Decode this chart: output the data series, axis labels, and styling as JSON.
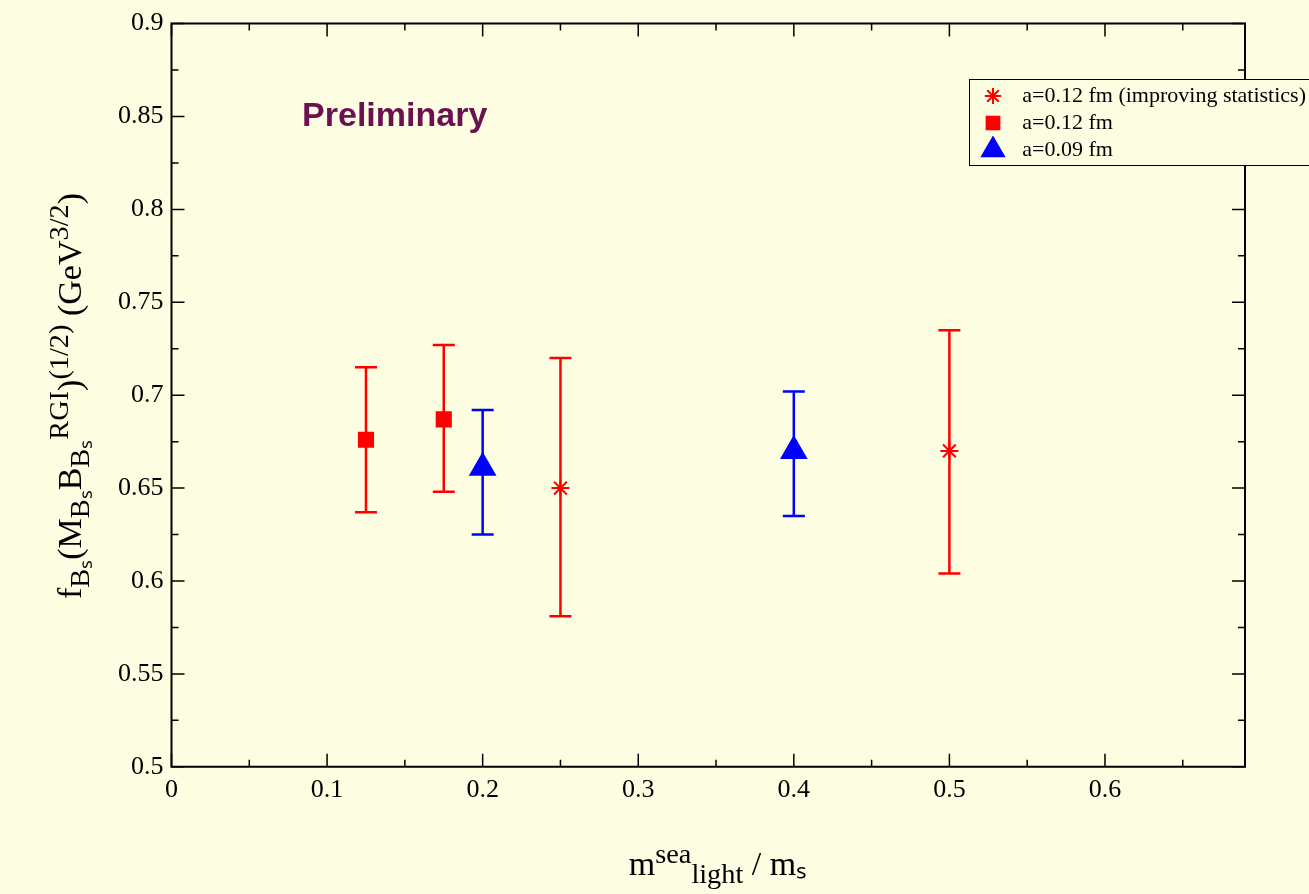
{
  "chart_data": {
    "type": "scatter",
    "xlabel": "m$^{sea}$$_{light}$ / mₛ",
    "ylabel": "f$_{Bₛ}$(M$_{Bₛ}$B$_{Bₛ}$$^{RGI}$)$^{(1/2)}$ (GeV$^{3/2}$)",
    "annotations": [
      "Preliminary"
    ],
    "series": [
      {
        "name": "a=0.12 fm (improving statistics)",
        "color": "#ff0000",
        "marker": "cross",
        "x": [
          0.25,
          0.5
        ],
        "values": [
          0.65,
          0.67
        ],
        "errors": [
          [
            0.581,
            0.72
          ],
          [
            0.604,
            0.735
          ]
        ]
      },
      {
        "name": "a=0.12 fm",
        "color": "#ff0000",
        "marker": "square",
        "x": [
          0.125,
          0.175
        ],
        "values": [
          0.676,
          0.687
        ],
        "errors": [
          [
            0.637,
            0.715
          ],
          [
            0.648,
            0.727
          ]
        ]
      },
      {
        "name": "a=0.09 fm",
        "color": "#0000ff",
        "marker": "triangle",
        "x": [
          0.2,
          0.4
        ],
        "values": [
          0.661,
          0.67
        ],
        "errors": [
          [
            0.625,
            0.692
          ],
          [
            0.635,
            0.702
          ]
        ]
      }
    ],
    "xlim": [
      0,
      0.69
    ],
    "ylim": [
      0.5,
      0.9
    ],
    "xticks": [
      0,
      {
        "value": 0.05,
        "label": null
      },
      0.1,
      {
        "value": 0.15,
        "label": null
      },
      0.2,
      {
        "value": 0.25,
        "label": null
      },
      0.3,
      {
        "value": 0.35,
        "label": null
      },
      0.4,
      {
        "value": 0.45,
        "label": null
      },
      0.5,
      {
        "value": 0.55,
        "label": null
      },
      0.6,
      {
        "value": 0.65,
        "label": null
      }
    ],
    "yticks": [
      0.5,
      {
        "value": 0.525,
        "label": null
      },
      0.55,
      {
        "value": 0.575,
        "label": null
      },
      0.6,
      {
        "value": 0.625,
        "label": null
      },
      0.65,
      {
        "value": 0.675,
        "label": null
      },
      0.7,
      {
        "value": 0.725,
        "label": null
      },
      0.75,
      {
        "value": 0.775,
        "label": null
      },
      0.8,
      {
        "value": 0.825,
        "label": null
      },
      0.85,
      {
        "value": 0.875,
        "label": null
      },
      0.9
    ],
    "grid": false,
    "legend": "top right"
  }
}
